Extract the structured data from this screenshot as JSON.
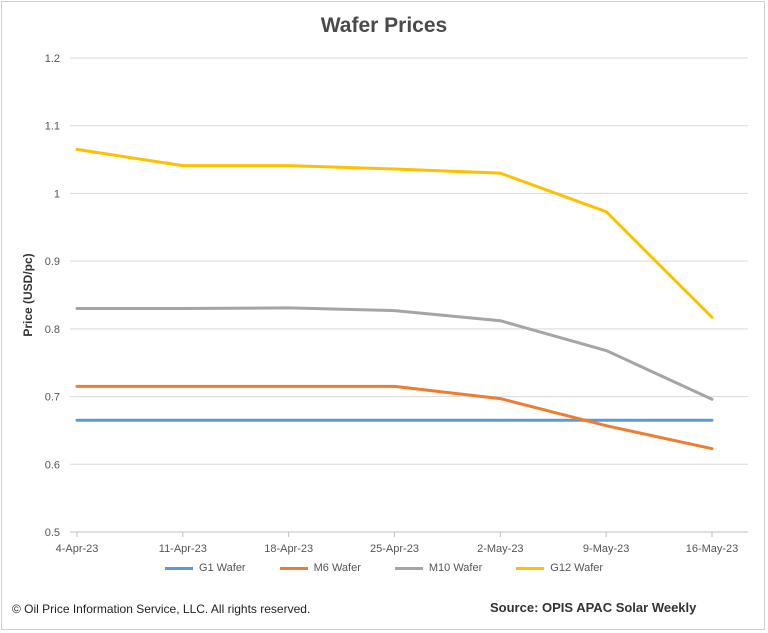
{
  "chart_data": {
    "type": "line",
    "title": "Wafer Prices",
    "xlabel": "",
    "ylabel": "Price (USD/pc)",
    "categories": [
      "4-Apr-23",
      "11-Apr-23",
      "18-Apr-23",
      "25-Apr-23",
      "2-May-23",
      "9-May-23",
      "16-May-23"
    ],
    "ylim": [
      0.5,
      1.2
    ],
    "yticks": [
      0.5,
      0.6,
      0.7,
      0.8,
      0.9,
      1,
      1.1,
      1.2
    ],
    "grid": true,
    "legend_position": "bottom",
    "series": [
      {
        "name": "G1 Wafer",
        "color": "#5B9BD5",
        "values": [
          0.665,
          0.665,
          0.665,
          0.665,
          0.665,
          0.665,
          0.665
        ]
      },
      {
        "name": "M6 Wafer",
        "color": "#ED7D31",
        "values": [
          0.715,
          0.715,
          0.715,
          0.715,
          0.697,
          0.657,
          0.623
        ]
      },
      {
        "name": "M10 Wafer",
        "color": "#A5A5A5",
        "values": [
          0.83,
          0.83,
          0.831,
          0.827,
          0.812,
          0.768,
          0.696
        ]
      },
      {
        "name": "G12 Wafer",
        "color": "#FFC000",
        "values": [
          1.065,
          1.041,
          1.041,
          1.036,
          1.03,
          0.973,
          0.817
        ]
      }
    ]
  },
  "footer": {
    "copyright": "© Oil Price Information Service, LLC.  All rights reserved.",
    "source": "Source: OPIS APAC Solar Weekly"
  }
}
